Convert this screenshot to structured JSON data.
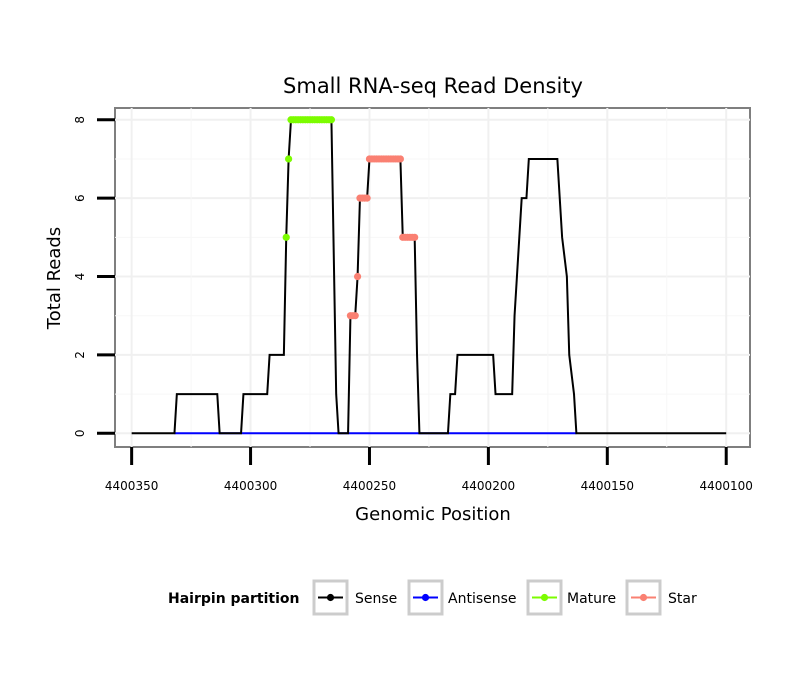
{
  "chart_data": {
    "type": "line",
    "title": "Small RNA-seq Read Density",
    "xlabel": "Genomic Position",
    "ylabel": "Total Reads",
    "xlim": [
      4400357,
      4400090
    ],
    "ylim": [
      -0.35,
      8.3
    ],
    "x_reversed": true,
    "x_ticks": [
      4400350,
      4400300,
      4400250,
      4400200,
      4400150,
      4400100
    ],
    "x_tick_labels": [
      "4400350",
      "4400300",
      "4400250",
      "4400200",
      "4400150",
      "4400100"
    ],
    "y_ticks": [
      0,
      2,
      4,
      6,
      8
    ],
    "y_tick_labels": [
      "0",
      "2",
      "4",
      "6",
      "8"
    ],
    "grid": true,
    "legend": {
      "title": "Hairpin partition",
      "position": "bottom",
      "entries": [
        "Sense",
        "Antisense",
        "Mature",
        "Star"
      ]
    },
    "colors": {
      "Sense": "#000000",
      "Antisense": "#0000ff",
      "Mature": "#7cfc00",
      "Star": "#fa8072"
    },
    "series": [
      {
        "name": "Sense",
        "type": "line",
        "points": [
          [
            4400350,
            0
          ],
          [
            4400332,
            0
          ],
          [
            4400331,
            1
          ],
          [
            4400314,
            1
          ],
          [
            4400313,
            0
          ],
          [
            4400304,
            0
          ],
          [
            4400303,
            1
          ],
          [
            4400293,
            1
          ],
          [
            4400292,
            2
          ],
          [
            4400286,
            2
          ],
          [
            4400285,
            5
          ],
          [
            4400284,
            7
          ],
          [
            4400283,
            8
          ],
          [
            4400266,
            8
          ],
          [
            4400264,
            1
          ],
          [
            4400263,
            0
          ],
          [
            4400259,
            0
          ],
          [
            4400258,
            3
          ],
          [
            4400256,
            3
          ],
          [
            4400255,
            4
          ],
          [
            4400254,
            6
          ],
          [
            4400251,
            6
          ],
          [
            4400250,
            7
          ],
          [
            4400237,
            7
          ],
          [
            4400236,
            5
          ],
          [
            4400231,
            5
          ],
          [
            4400230,
            2
          ],
          [
            4400229,
            0
          ],
          [
            4400217,
            0
          ],
          [
            4400216,
            1
          ],
          [
            4400214,
            1
          ],
          [
            4400213,
            2
          ],
          [
            4400198,
            2
          ],
          [
            4400197,
            1
          ],
          [
            4400190,
            1
          ],
          [
            4400189,
            3
          ],
          [
            4400188,
            4
          ],
          [
            4400187,
            5
          ],
          [
            4400186,
            6
          ],
          [
            4400184,
            6
          ],
          [
            4400183,
            7
          ],
          [
            4400171,
            7
          ],
          [
            4400170,
            6
          ],
          [
            4400169,
            5
          ],
          [
            4400167,
            4
          ],
          [
            4400166,
            2
          ],
          [
            4400164,
            1
          ],
          [
            4400163,
            0
          ],
          [
            4400100,
            0
          ]
        ]
      },
      {
        "name": "Antisense",
        "type": "line",
        "points": [
          [
            4400332,
            0
          ],
          [
            4400163,
            0
          ]
        ]
      },
      {
        "name": "Mature",
        "type": "points",
        "points": [
          [
            4400285,
            5
          ],
          [
            4400284,
            7
          ],
          [
            4400283,
            8
          ],
          [
            4400282,
            8
          ],
          [
            4400281,
            8
          ],
          [
            4400280,
            8
          ],
          [
            4400279,
            8
          ],
          [
            4400278,
            8
          ],
          [
            4400277,
            8
          ],
          [
            4400276,
            8
          ],
          [
            4400275,
            8
          ],
          [
            4400274,
            8
          ],
          [
            4400273,
            8
          ],
          [
            4400272,
            8
          ],
          [
            4400271,
            8
          ],
          [
            4400270,
            8
          ],
          [
            4400269,
            8
          ],
          [
            4400268,
            8
          ],
          [
            4400267,
            8
          ],
          [
            4400266,
            8
          ]
        ]
      },
      {
        "name": "Star",
        "type": "points",
        "points": [
          [
            4400258,
            3
          ],
          [
            4400257,
            3
          ],
          [
            4400256,
            3
          ],
          [
            4400255,
            4
          ],
          [
            4400254,
            6
          ],
          [
            4400253,
            6
          ],
          [
            4400252,
            6
          ],
          [
            4400251,
            6
          ],
          [
            4400250,
            7
          ],
          [
            4400249,
            7
          ],
          [
            4400248,
            7
          ],
          [
            4400247,
            7
          ],
          [
            4400246,
            7
          ],
          [
            4400245,
            7
          ],
          [
            4400244,
            7
          ],
          [
            4400243,
            7
          ],
          [
            4400242,
            7
          ],
          [
            4400241,
            7
          ],
          [
            4400240,
            7
          ],
          [
            4400239,
            7
          ],
          [
            4400238,
            7
          ],
          [
            4400237,
            7
          ],
          [
            4400236,
            5
          ],
          [
            4400235,
            5
          ],
          [
            4400234,
            5
          ],
          [
            4400233,
            5
          ],
          [
            4400232,
            5
          ],
          [
            4400231,
            5
          ]
        ]
      }
    ]
  }
}
